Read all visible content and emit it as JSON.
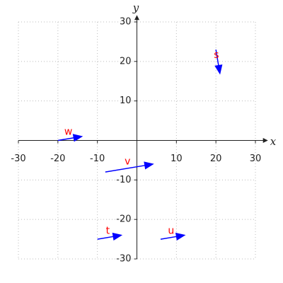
{
  "chart_data": {
    "type": "quiver",
    "x_label": "x",
    "y_label": "y",
    "xlim": [
      -30,
      30
    ],
    "ylim": [
      -30,
      30
    ],
    "xticks": [
      -30,
      -20,
      -10,
      10,
      20,
      30
    ],
    "yticks": [
      -30,
      -20,
      -10,
      10,
      20,
      30
    ],
    "grid": true,
    "color": "#0000ff",
    "label_color": "#ff0000",
    "vectors": [
      {
        "name": "s",
        "x": [
          20,
          21
        ],
        "y": [
          23,
          17
        ]
      },
      {
        "name": "w",
        "x": [
          -20,
          -14
        ],
        "y": [
          0,
          1
        ]
      },
      {
        "name": "v",
        "x": [
          -8,
          4
        ],
        "y": [
          -8,
          -6
        ]
      },
      {
        "name": "t",
        "x": [
          -10,
          -4
        ],
        "y": [
          -25,
          -24
        ]
      },
      {
        "name": "u",
        "x": [
          6,
          12
        ],
        "y": [
          -25,
          -24
        ]
      }
    ]
  }
}
